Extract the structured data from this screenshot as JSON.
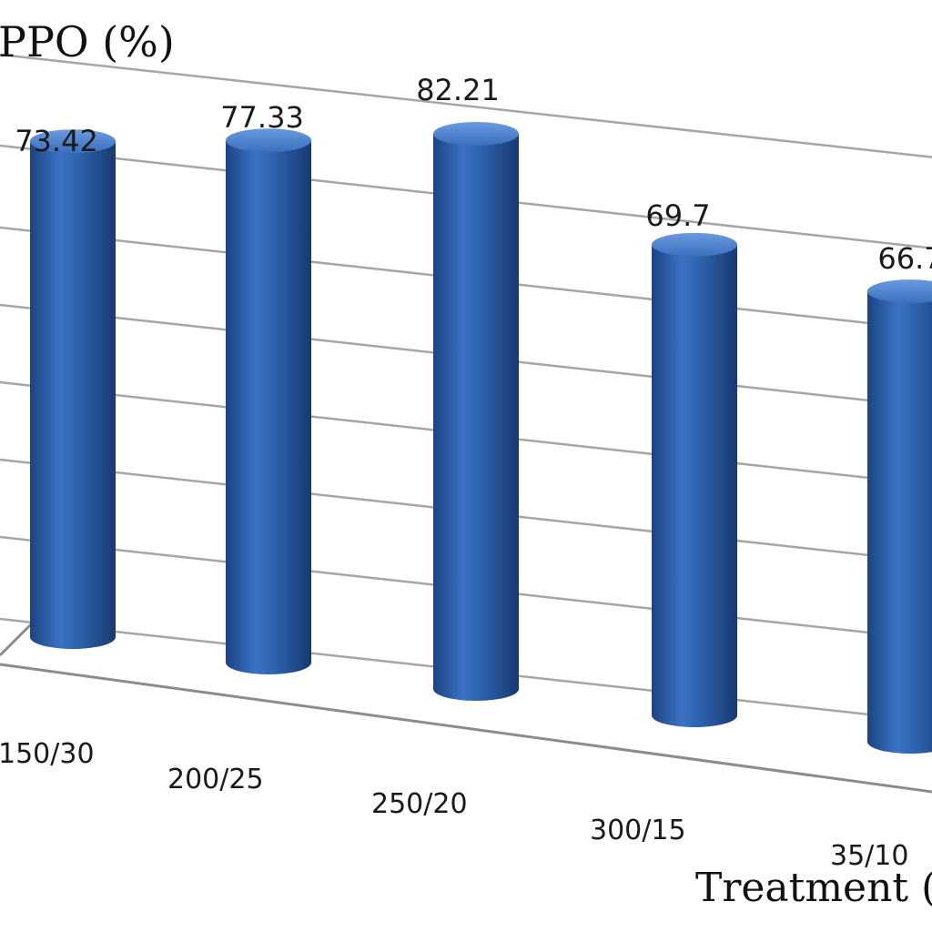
{
  "chart_data": {
    "type": "bar",
    "style": "3d-cylinder",
    "ylabel": "PPO (%)",
    "xlabel": "Treatment (M",
    "categories": [
      "150/30",
      "200/25",
      "250/20",
      "300/15",
      "35/10"
    ],
    "values": [
      73.42,
      77.33,
      82.21,
      69.7,
      66.7
    ],
    "data_labels": [
      "73.42",
      "77.33",
      "82.21",
      "69.7",
      "66.7"
    ],
    "grid": true,
    "bar_color": "#2f63ad",
    "bar_highlight": "#5b8ed6",
    "bar_shadow": "#17396e"
  }
}
